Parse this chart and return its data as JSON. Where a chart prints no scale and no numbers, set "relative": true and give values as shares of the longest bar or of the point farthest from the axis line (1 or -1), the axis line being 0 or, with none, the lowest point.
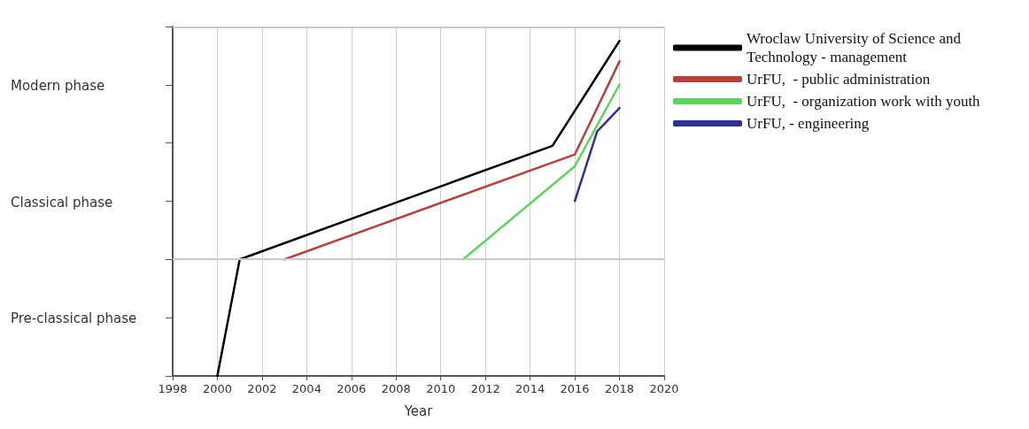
{
  "chart_data": {
    "type": "line",
    "xlabel": "Year",
    "xlim": [
      1998,
      2020
    ],
    "xticks": [
      1998,
      2000,
      2002,
      2004,
      2006,
      2008,
      2010,
      2012,
      2014,
      2016,
      2018,
      2020
    ],
    "relative": true,
    "annotations": [
      "Modern phase",
      "Classical phase",
      "Pre-classical phase"
    ],
    "grid": "x",
    "legend": "top right",
    "marker": "none",
    "line_style": "solid",
    "ref_lines": [
      {
        "axis": "y",
        "value": 0.348,
        "label": null,
        "color": "#c8c8c8"
      },
      {
        "axis": "y",
        "value": 1.043,
        "label": null,
        "color": "#c8c8c8"
      }
    ],
    "series": [
      {
        "name": "Wroclaw University of Science and Technology - management",
        "color": "#000000",
        "x": [
          2000,
          2001,
          2015,
          2018
        ],
        "values": [
          0,
          0.348,
          0.687,
          1
        ]
      },
      {
        "name": "UrFU,  - public administration",
        "color": "#b5413f",
        "x": [
          2003,
          2016,
          2018
        ],
        "values": [
          0.348,
          0.661,
          0.939
        ]
      },
      {
        "name": "UrFU,  - organization work with youth",
        "color": "#5fd35f",
        "x": [
          2011,
          2016,
          2018
        ],
        "values": [
          0.348,
          0.626,
          0.87
        ]
      },
      {
        "name": "UrFU, - engineering",
        "color": "#2e3192",
        "x": [
          2016,
          2017,
          2018
        ],
        "values": [
          0.522,
          0.73,
          0.8
        ]
      }
    ]
  }
}
